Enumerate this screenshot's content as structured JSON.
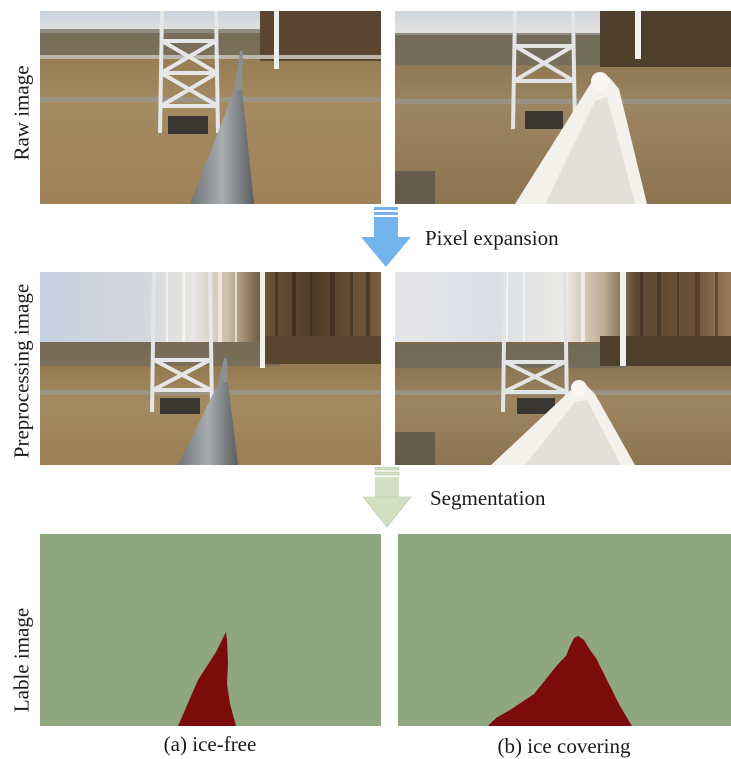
{
  "rows": {
    "raw": "Raw image",
    "preprocessing": "Preprocessing image",
    "label": "Lable image"
  },
  "steps": {
    "pixel_expansion": "Pixel expansion",
    "segmentation": "Segmentation"
  },
  "captions": {
    "left": "(a) ice-free",
    "right": "(b) ice covering"
  },
  "colors": {
    "pixel_expansion_arrow": "#74b4ee",
    "segmentation_arrow": "#d3dfc3",
    "label_background": "#8ea77f",
    "label_foreground": "#7c0b0b"
  }
}
